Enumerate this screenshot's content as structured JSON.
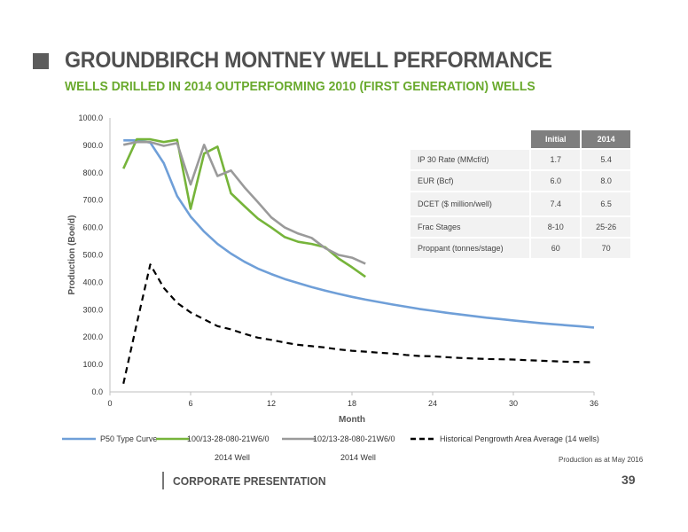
{
  "slide": {
    "title": "GROUNDBIRCH MONTNEY WELL PERFORMANCE",
    "subtitle": "WELLS DRILLED IN 2014 OUTPERFORMING 2010 (FIRST GENERATION) WELLS",
    "note": "Production as at May 2016",
    "footer": "CORPORATE PRESENTATION",
    "page_number": "39"
  },
  "table": {
    "headers": [
      "",
      "Initial",
      "2014"
    ],
    "rows": [
      {
        "label": "IP 30 Rate (MMcf/d)",
        "initial": "1.7",
        "y2014": "5.4"
      },
      {
        "label": "EUR (Bcf)",
        "initial": "6.0",
        "y2014": "8.0"
      },
      {
        "label": "DCET ($ million/well)",
        "initial": "7.4",
        "y2014": "6.5"
      },
      {
        "label": "Frac Stages",
        "initial": "8-10",
        "y2014": "25-26"
      },
      {
        "label": "Proppant (tonnes/stage)",
        "initial": "60",
        "y2014": "70"
      }
    ]
  },
  "chart_data": {
    "type": "line",
    "xlabel": "Month",
    "ylabel": "Production (Boe/d)",
    "xlim": [
      0,
      36
    ],
    "ylim": [
      0,
      1000
    ],
    "xticks": [
      "0",
      "6",
      "12",
      "18",
      "24",
      "30",
      "36"
    ],
    "yticks": [
      "0.0",
      "100.0",
      "200.0",
      "300.0",
      "400.0",
      "500.0",
      "600.0",
      "700.0",
      "800.0",
      "900.0",
      "1000.0"
    ],
    "grid": false,
    "legend_position": "bottom",
    "series": [
      {
        "name": "P50 Type Curve",
        "color": "#6f9fd8",
        "style": "solid",
        "x": [
          1,
          2,
          3,
          4,
          5,
          6,
          7,
          8,
          9,
          10,
          11,
          12,
          13,
          14,
          15,
          16,
          17,
          18,
          19,
          20,
          21,
          22,
          23,
          24,
          25,
          26,
          27,
          28,
          29,
          30,
          31,
          32,
          33,
          34,
          35,
          36
        ],
        "y": [
          918,
          918,
          910,
          835,
          715,
          640,
          585,
          540,
          505,
          475,
          450,
          430,
          412,
          397,
          383,
          370,
          358,
          347,
          337,
          328,
          319,
          311,
          303,
          296,
          289,
          283,
          277,
          271,
          266,
          261,
          256,
          251,
          247,
          243,
          239,
          235
        ]
      },
      {
        "name": "100/13-28-080-21W6/0",
        "legend_line2": "2014 Well",
        "color": "#76b43a",
        "style": "solid",
        "x": [
          1,
          2,
          3,
          4,
          5,
          6,
          7,
          8,
          9,
          10,
          11,
          12,
          13,
          14,
          15,
          16,
          17,
          18,
          19
        ],
        "y": [
          815,
          922,
          922,
          912,
          920,
          668,
          870,
          895,
          725,
          678,
          633,
          600,
          565,
          548,
          540,
          528,
          487,
          455,
          420
        ]
      },
      {
        "name": "102/13-28-080-21W6/0",
        "legend_line2": "2014 Well",
        "color": "#9a9a9a",
        "style": "solid",
        "x": [
          1,
          2,
          3,
          4,
          5,
          6,
          7,
          8,
          9,
          10,
          11,
          12,
          13,
          14,
          15,
          16,
          17,
          18,
          19
        ],
        "y": [
          902,
          912,
          912,
          898,
          908,
          757,
          902,
          788,
          808,
          747,
          693,
          637,
          600,
          578,
          562,
          525,
          500,
          490,
          468
        ]
      },
      {
        "name": "Historical Pengrowth Area Average (14 wells)",
        "color": "#000000",
        "style": "dashed",
        "x": [
          1,
          2,
          3,
          4,
          5,
          6,
          7,
          8,
          9,
          10,
          11,
          12,
          13,
          14,
          15,
          16,
          17,
          18,
          19,
          20,
          21,
          22,
          23,
          24,
          25,
          26,
          27,
          28,
          29,
          30,
          31,
          32,
          33,
          34,
          35,
          36
        ],
        "y": [
          30,
          250,
          465,
          380,
          325,
          290,
          265,
          240,
          228,
          212,
          198,
          190,
          180,
          172,
          167,
          162,
          155,
          150,
          147,
          143,
          140,
          135,
          131,
          130,
          127,
          124,
          122,
          120,
          119,
          118,
          116,
          114,
          112,
          110,
          109,
          108
        ]
      }
    ]
  }
}
